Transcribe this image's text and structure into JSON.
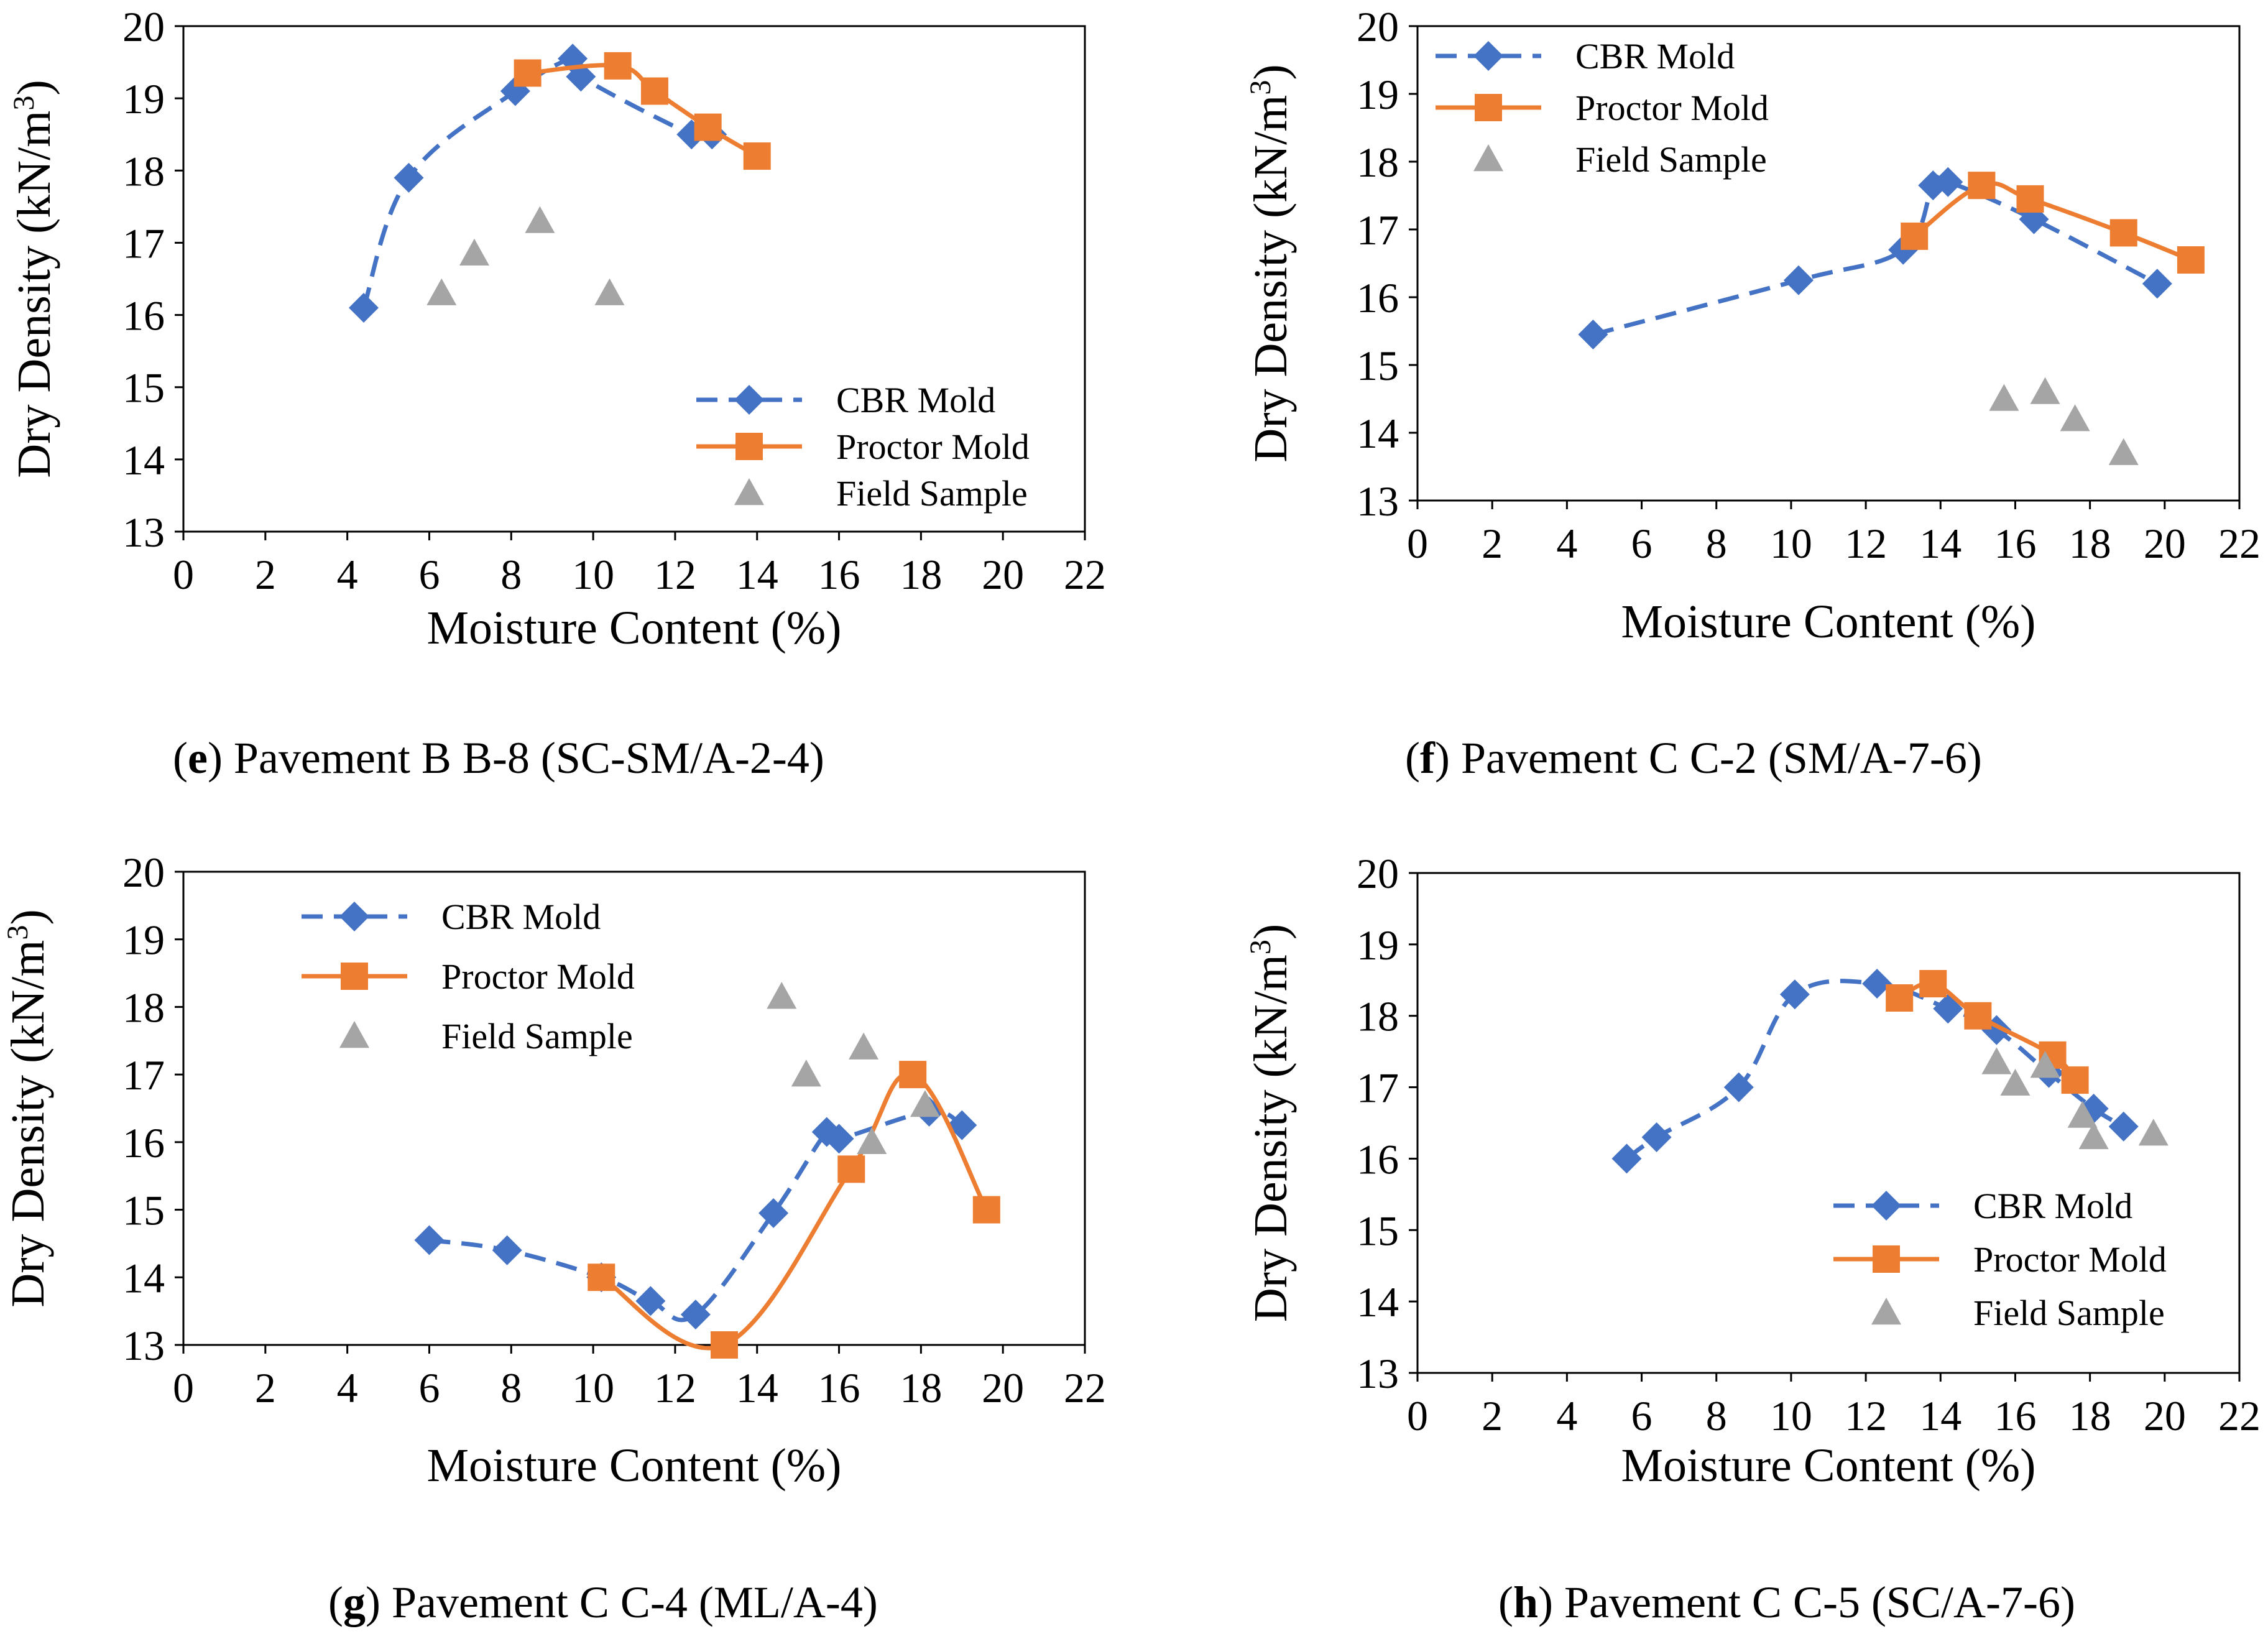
{
  "colors": {
    "cbr": "#4472C4",
    "proctor": "#ED7D31",
    "field": "#A5A5A5",
    "axis": "#000000"
  },
  "chart_data": [
    {
      "type": "scatter",
      "panel_letter": "e",
      "caption": ") Pavement B B-8 (SC-SM/A-2-4)",
      "xlabel": "Moisture Content (%)",
      "ylabel": "Dry Density (kN/m",
      "ylabel_sup": "3",
      "ylabel_close": ")",
      "xlim": [
        0,
        22
      ],
      "ylim": [
        13,
        20
      ],
      "xticks": [
        "0",
        "2",
        "4",
        "6",
        "8",
        "10",
        "12",
        "14",
        "16",
        "18",
        "20",
        "22"
      ],
      "yticks": [
        "13",
        "14",
        "15",
        "16",
        "17",
        "18",
        "19",
        "20"
      ],
      "grid": false,
      "legend_position": "bottom-right",
      "series": [
        {
          "name": "CBR Mold",
          "key": "cbr",
          "style": "dashed-diamond",
          "points": [
            [
              4.4,
              16.1
            ],
            [
              5.5,
              17.9
            ],
            [
              8.1,
              19.1
            ],
            [
              9.5,
              19.55
            ],
            [
              9.7,
              19.3
            ],
            [
              12.4,
              18.5
            ],
            [
              12.9,
              18.5
            ]
          ]
        },
        {
          "name": "Proctor Mold",
          "key": "proctor",
          "style": "solid-square",
          "points": [
            [
              8.4,
              19.35
            ],
            [
              10.6,
              19.45
            ],
            [
              11.5,
              19.1
            ],
            [
              12.8,
              18.6
            ],
            [
              14.0,
              18.2
            ]
          ]
        },
        {
          "name": "Field Sample",
          "key": "field",
          "style": "triangle",
          "points": [
            [
              6.3,
              16.3
            ],
            [
              7.1,
              16.85
            ],
            [
              8.7,
              17.3
            ],
            [
              10.4,
              16.3
            ]
          ]
        }
      ]
    },
    {
      "type": "scatter",
      "panel_letter": "f",
      "caption": ") Pavement C C-2 (SM/A-7-6)",
      "xlabel": "Moisture Content (%)",
      "ylabel": "Dry Density (kN/m",
      "ylabel_sup": "3",
      "ylabel_close": ")",
      "xlim": [
        0,
        22
      ],
      "ylim": [
        13,
        20
      ],
      "xticks": [
        "0",
        "2",
        "4",
        "6",
        "8",
        "10",
        "12",
        "14",
        "16",
        "18",
        "20",
        "22"
      ],
      "yticks": [
        "13",
        "14",
        "15",
        "16",
        "17",
        "18",
        "19",
        "20"
      ],
      "grid": false,
      "legend_position": "top-left",
      "series": [
        {
          "name": "CBR Mold",
          "key": "cbr",
          "style": "dashed-diamond",
          "points": [
            [
              4.7,
              15.45
            ],
            [
              10.2,
              16.25
            ],
            [
              13.0,
              16.7
            ],
            [
              13.8,
              17.65
            ],
            [
              14.2,
              17.7
            ],
            [
              16.5,
              17.15
            ],
            [
              19.8,
              16.2
            ]
          ]
        },
        {
          "name": "Proctor Mold",
          "key": "proctor",
          "style": "solid-square",
          "points": [
            [
              13.3,
              16.9
            ],
            [
              15.1,
              17.65
            ],
            [
              16.4,
              17.45
            ],
            [
              18.9,
              16.95
            ],
            [
              20.7,
              16.55
            ]
          ]
        },
        {
          "name": "Field Sample",
          "key": "field",
          "style": "triangle",
          "points": [
            [
              15.7,
              14.5
            ],
            [
              16.8,
              14.6
            ],
            [
              17.6,
              14.2
            ],
            [
              18.9,
              13.7
            ]
          ]
        }
      ]
    },
    {
      "type": "scatter",
      "panel_letter": "g",
      "caption": ") Pavement C C-4 (ML/A-4)",
      "xlabel": "Moisture Content (%)",
      "ylabel": "Dry Density (kN/m",
      "ylabel_sup": "3",
      "ylabel_close": ")",
      "xlim": [
        0,
        22
      ],
      "ylim": [
        13,
        20
      ],
      "xticks": [
        "0",
        "2",
        "4",
        "6",
        "8",
        "10",
        "12",
        "14",
        "16",
        "18",
        "20",
        "22"
      ],
      "yticks": [
        "13",
        "14",
        "15",
        "16",
        "17",
        "18",
        "19",
        "20"
      ],
      "grid": false,
      "legend_position": "top-left",
      "series": [
        {
          "name": "CBR Mold",
          "key": "cbr",
          "style": "dashed-diamond",
          "points": [
            [
              6.0,
              14.55
            ],
            [
              7.9,
              14.4
            ],
            [
              10.2,
              14.0
            ],
            [
              11.4,
              13.65
            ],
            [
              12.5,
              13.45
            ],
            [
              14.4,
              14.95
            ],
            [
              15.7,
              16.15
            ],
            [
              16.0,
              16.05
            ],
            [
              18.2,
              16.45
            ],
            [
              19.0,
              16.25
            ]
          ]
        },
        {
          "name": "Proctor Mold",
          "key": "proctor",
          "style": "solid-square",
          "points": [
            [
              10.2,
              14.0
            ],
            [
              13.2,
              13.0
            ],
            [
              16.3,
              15.6
            ],
            [
              17.8,
              17.0
            ],
            [
              19.6,
              15.0
            ]
          ]
        },
        {
          "name": "Field Sample",
          "key": "field",
          "style": "triangle",
          "points": [
            [
              14.6,
              18.15
            ],
            [
              15.2,
              17.0
            ],
            [
              16.6,
              17.4
            ],
            [
              16.8,
              16.0
            ],
            [
              18.1,
              16.55
            ]
          ]
        }
      ]
    },
    {
      "type": "scatter",
      "panel_letter": "h",
      "caption": ") Pavement C C-5 (SC/A-7-6)",
      "xlabel": "Moisture Content (%)",
      "ylabel": "Dry Density (kN/m",
      "ylabel_sup": "3",
      "ylabel_close": ")",
      "xlim": [
        0,
        22
      ],
      "ylim": [
        13,
        20
      ],
      "xticks": [
        "0",
        "2",
        "4",
        "6",
        "8",
        "10",
        "12",
        "14",
        "16",
        "18",
        "20",
        "22"
      ],
      "yticks": [
        "13",
        "14",
        "15",
        "16",
        "17",
        "18",
        "19",
        "20"
      ],
      "grid": false,
      "legend_position": "bottom-right",
      "series": [
        {
          "name": "CBR Mold",
          "key": "cbr",
          "style": "dashed-diamond",
          "points": [
            [
              5.6,
              16.0
            ],
            [
              6.4,
              16.3
            ],
            [
              8.6,
              17.0
            ],
            [
              10.1,
              18.3
            ],
            [
              12.3,
              18.45
            ],
            [
              14.2,
              18.1
            ],
            [
              15.5,
              17.8
            ],
            [
              16.9,
              17.2
            ],
            [
              18.1,
              16.7
            ],
            [
              18.9,
              16.45
            ]
          ]
        },
        {
          "name": "Proctor Mold",
          "key": "proctor",
          "style": "solid-square",
          "points": [
            [
              12.9,
              18.25
            ],
            [
              13.8,
              18.45
            ],
            [
              15.0,
              18.0
            ],
            [
              17.0,
              17.45
            ],
            [
              17.6,
              17.1
            ]
          ]
        },
        {
          "name": "Field Sample",
          "key": "field",
          "style": "triangle",
          "points": [
            [
              15.5,
              17.35
            ],
            [
              16.0,
              17.05
            ],
            [
              16.8,
              17.3
            ],
            [
              17.8,
              16.6
            ],
            [
              18.1,
              16.3
            ],
            [
              19.7,
              16.35
            ]
          ]
        }
      ]
    }
  ]
}
